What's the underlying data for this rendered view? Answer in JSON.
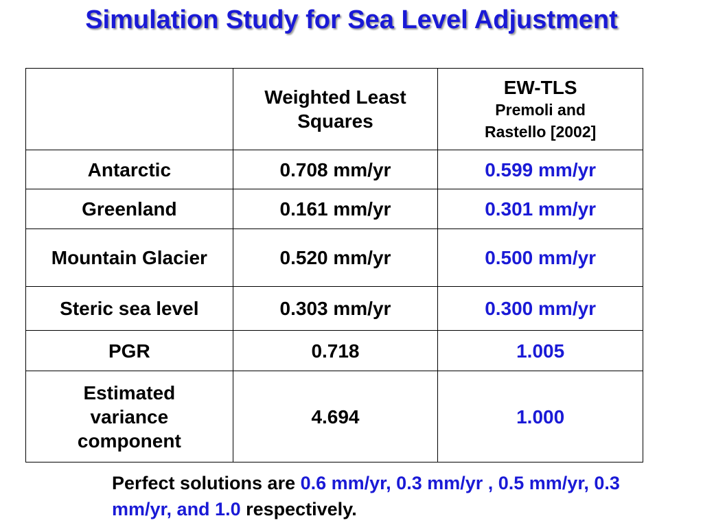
{
  "title": "Simulation Study for Sea Level Adjustment",
  "table": {
    "header": {
      "corner": "",
      "col_wls_line1": "Weighted Least",
      "col_wls_line2": "Squares",
      "col_ewtls_main": "EW-TLS",
      "col_ewtls_sub1": "Premoli and",
      "col_ewtls_sub2": "Rastello [2002]"
    },
    "rows": [
      {
        "label": "Antarctic",
        "wls": "0.708 mm/yr",
        "ewtls": "0.599 mm/yr"
      },
      {
        "label": "Greenland",
        "wls": "0.161 mm/yr",
        "ewtls": "0.301 mm/yr"
      },
      {
        "label": "Mountain Glacier",
        "wls": "0.520 mm/yr",
        "ewtls": "0.500 mm/yr"
      },
      {
        "label": "Steric sea level",
        "wls": "0.303 mm/yr",
        "ewtls": "0.300 mm/yr"
      },
      {
        "label": "PGR",
        "wls": "0.718",
        "ewtls": "1.005"
      },
      {
        "label_line1": "Estimated",
        "label_line2": "variance",
        "label_line3": "component",
        "wls": "4.694",
        "ewtls": "1.000"
      }
    ]
  },
  "note": {
    "prefix": "Perfect solutions are ",
    "values": "0.6 mm/yr, 0.3 mm/yr , 0.5 mm/yr, 0.3 mm/yr, and 1.0",
    "suffix": " respectively."
  },
  "colors": {
    "accent_blue": "#1a1ad6",
    "text": "#000000",
    "background": "#ffffff"
  }
}
